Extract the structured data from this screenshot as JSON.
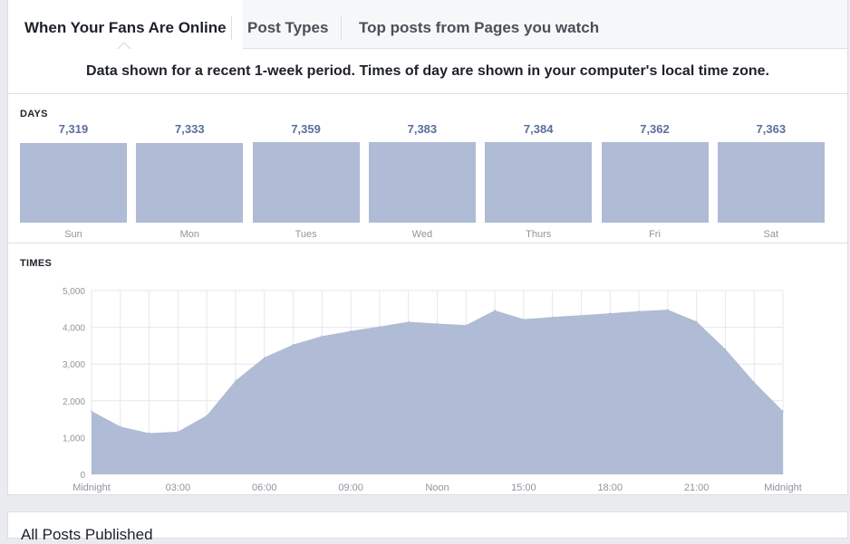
{
  "tabs": [
    {
      "label": "When Your Fans Are Online",
      "active": true
    },
    {
      "label": "Post Types",
      "active": false
    },
    {
      "label": "Top posts from Pages you watch",
      "active": false
    }
  ],
  "notice": "Data shown for a recent 1-week period. Times of day are shown in your computer's local time zone.",
  "days_section": {
    "label": "DAYS"
  },
  "times_section": {
    "label": "TIMES"
  },
  "next_section": {
    "title": "All Posts Published"
  },
  "colors": {
    "bar": "#b0bbd5",
    "area": "#b0bbd5",
    "value_text": "#5b6f9c",
    "grid": "#e5e7eb"
  },
  "chart_data": [
    {
      "type": "bar",
      "title": "DAYS",
      "categories": [
        "Sun",
        "Mon",
        "Tues",
        "Wed",
        "Thurs",
        "Fri",
        "Sat"
      ],
      "values": [
        7319,
        7333,
        7359,
        7383,
        7384,
        7362,
        7363
      ],
      "value_labels": [
        "7,319",
        "7,333",
        "7,359",
        "7,383",
        "7,384",
        "7,362",
        "7,363"
      ]
    },
    {
      "type": "area",
      "title": "TIMES",
      "x_ticks": [
        "Midnight",
        "03:00",
        "06:00",
        "09:00",
        "Noon",
        "15:00",
        "18:00",
        "21:00",
        "Midnight"
      ],
      "y_ticks": [
        "0",
        "1,000",
        "2,000",
        "3,000",
        "4,000",
        "5,000"
      ],
      "ylim": [
        0,
        5000
      ],
      "x_hours": [
        0,
        1,
        2,
        3,
        4,
        5,
        6,
        7,
        8,
        9,
        10,
        11,
        12,
        13,
        14,
        15,
        16,
        17,
        18,
        19,
        20,
        21,
        22,
        23,
        24
      ],
      "values": [
        1720,
        1300,
        1120,
        1160,
        1600,
        2550,
        3180,
        3530,
        3760,
        3900,
        4020,
        4150,
        4100,
        4060,
        4460,
        4220,
        4280,
        4330,
        4380,
        4440,
        4480,
        4160,
        3410,
        2510,
        1720
      ],
      "grid": true
    }
  ]
}
